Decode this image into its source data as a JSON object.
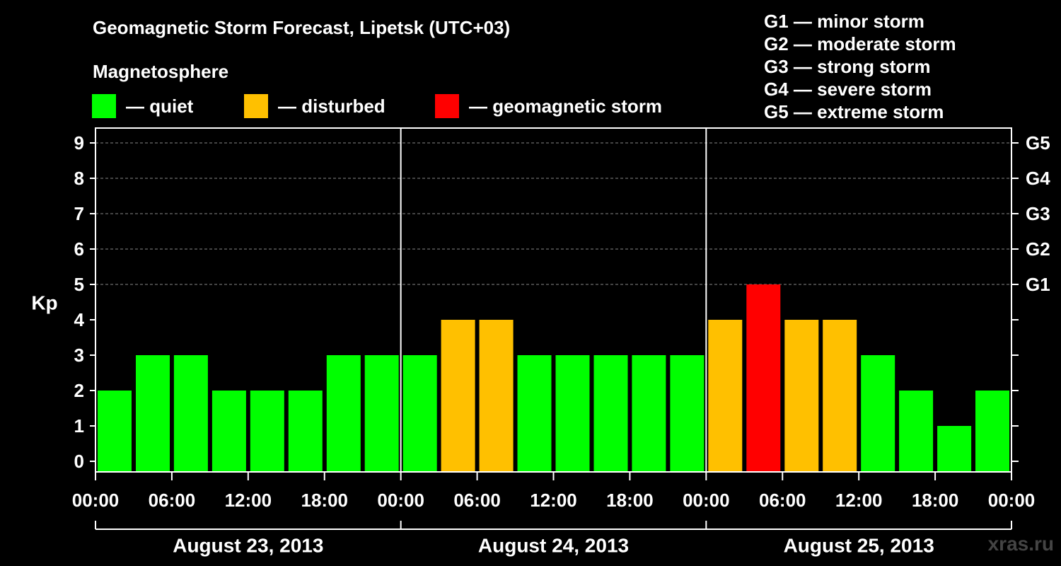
{
  "title": "Geomagnetic Storm Forecast, Lipetsk (UTC+03)",
  "magnetosphere_label": "Magnetosphere",
  "legend": [
    {
      "label": "— quiet",
      "color": "#00ff00"
    },
    {
      "label": "— disturbed",
      "color": "#ffc000"
    },
    {
      "label": "— geomagnetic storm",
      "color": "#ff0000"
    }
  ],
  "storm_scale": [
    "G1 — minor storm",
    "G2 — moderate storm",
    "G3 — strong storm",
    "G4 — severe storm",
    "G5 — extreme storm"
  ],
  "watermark": "xras.ru",
  "chart_data": {
    "type": "bar",
    "ylabel": "Kp",
    "ylim": [
      0,
      9
    ],
    "y_ticks": [
      "0",
      "1",
      "2",
      "3",
      "4",
      "5",
      "6",
      "7",
      "8",
      "9"
    ],
    "right_ticks": [
      {
        "kp": 5,
        "label": "G1"
      },
      {
        "kp": 6,
        "label": "G2"
      },
      {
        "kp": 7,
        "label": "G3"
      },
      {
        "kp": 8,
        "label": "G4"
      },
      {
        "kp": 9,
        "label": "G5"
      }
    ],
    "x_tick_labels": [
      "00:00",
      "06:00",
      "12:00",
      "18:00",
      "00:00",
      "06:00",
      "12:00",
      "18:00",
      "00:00",
      "06:00",
      "12:00",
      "18:00",
      "00:00"
    ],
    "days": [
      "August 23, 2013",
      "August 24, 2013",
      "August 25, 2013"
    ],
    "grid": "dashed horizontal at integer Kp 5-9",
    "interval_hours": 3,
    "values": [
      2,
      3,
      3,
      2,
      2,
      2,
      3,
      3,
      3,
      4,
      4,
      3,
      3,
      3,
      3,
      3,
      4,
      5,
      4,
      4,
      3,
      2,
      1,
      2
    ],
    "colors": {
      "quiet": "#00ff00",
      "disturbed": "#ffc000",
      "storm": "#ff0000"
    }
  }
}
